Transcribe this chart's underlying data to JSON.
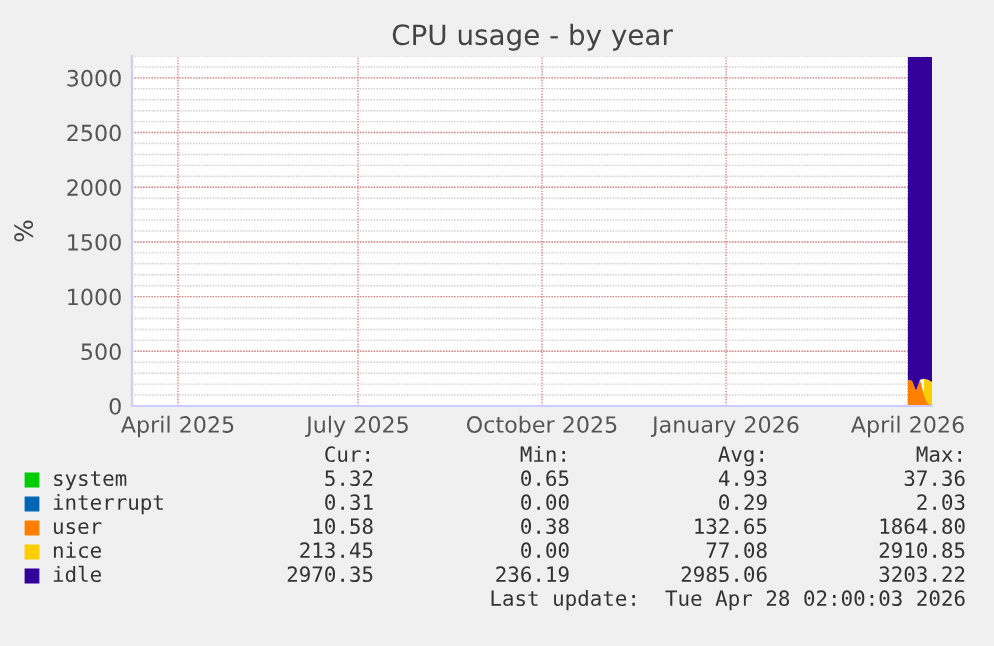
{
  "chart_data": {
    "type": "area",
    "stacked": true,
    "title": "CPU usage - by year",
    "ylabel": "%",
    "x": [
      "2026-04-16",
      "2026-04-18",
      "2026-04-20",
      "2026-04-22",
      "2026-04-24",
      "2026-04-26",
      "2026-04-28"
    ],
    "series": [
      {
        "name": "system",
        "color": "#00cc00",
        "values": [
          null,
          null,
          null,
          null,
          null,
          null,
          null
        ]
      },
      {
        "name": "interrupt",
        "color": "#0066b3",
        "values": [
          null,
          null,
          null,
          null,
          null,
          null,
          null
        ]
      },
      {
        "name": "user",
        "color": "#ff8000",
        "values": [
          240,
          230,
          140,
          240,
          100,
          20,
          10
        ]
      },
      {
        "name": "nice",
        "color": "#ffcc00",
        "values": [
          null,
          null,
          null,
          null,
          150,
          220,
          210
        ]
      },
      {
        "name": "idle",
        "color": "#330099",
        "values": [
          2950,
          2960,
          3050,
          2950,
          2940,
          2950,
          2970
        ]
      }
    ],
    "xlim": [
      "2025-03-24",
      "2026-04-28"
    ],
    "xticks": [
      {
        "value": "2025-04-16",
        "label": "April 2025"
      },
      {
        "value": "2025-07-15",
        "label": "July 2025"
      },
      {
        "value": "2025-10-15",
        "label": "October 2025"
      },
      {
        "value": "2026-01-15",
        "label": "January 2026"
      },
      {
        "value": "2026-04-16",
        "label": "April 2026"
      }
    ],
    "ylim": [
      0,
      3200
    ],
    "yticks": [
      0,
      500,
      1000,
      1500,
      2000,
      2500,
      3000
    ],
    "grid": true,
    "legend": "bottom",
    "annotations": [
      "Cur:",
      "Min:",
      "Avg:",
      "Max:",
      "5.32",
      "0.65",
      "4.93",
      "37.36",
      "0.31",
      "0.00",
      "0.29",
      "2.03",
      "10.58",
      "0.38",
      "132.65",
      "1864.80",
      "213.45",
      "0.00",
      "77.08",
      "2910.85",
      "2970.35",
      "236.19",
      "2985.06",
      "3203.22",
      "Last update:  Tue Apr 28 02:00:03 2026"
    ]
  }
}
